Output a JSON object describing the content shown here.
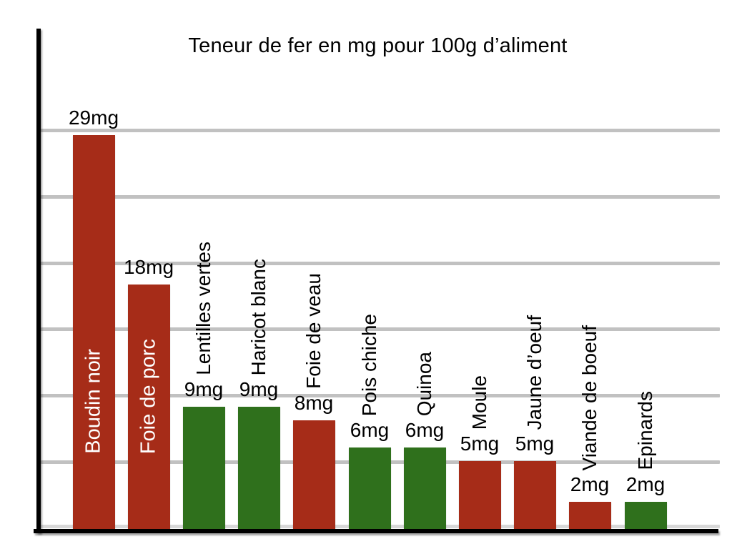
{
  "chart_data": {
    "type": "bar",
    "title": "Teneur de fer en mg pour 100g d’aliment",
    "categories": [
      "Boudin noir",
      "Foie de porc",
      "Lentilles vertes",
      "Haricot blanc",
      "Foie de veau",
      "Pois chiche",
      "Quinoa",
      "Moule",
      "Jaune d’oeuf",
      "Viande de boeuf",
      "Epinards"
    ],
    "values": [
      29,
      18,
      9,
      9,
      8,
      6,
      6,
      5,
      5,
      2,
      2
    ],
    "value_labels": [
      "29mg",
      "18mg",
      "9mg",
      "9mg",
      "8mg",
      "6mg",
      "6mg",
      "5mg",
      "5mg",
      "2mg",
      "2mg"
    ],
    "bar_color_keys": [
      "red",
      "red",
      "green",
      "green",
      "red",
      "green",
      "green",
      "red",
      "red",
      "red",
      "green"
    ],
    "palette": {
      "red": "#A62C18",
      "green": "#2F701C"
    },
    "category_label_placement": [
      "inside",
      "inside",
      "above",
      "above",
      "above",
      "above",
      "above",
      "above",
      "above",
      "above",
      "above"
    ],
    "category_label_colors": {
      "inside": "#FFFFFF",
      "above": "#000000"
    },
    "unit": "mg",
    "xlabel": "",
    "ylabel": "",
    "ylim": [
      0,
      35
    ],
    "gridline_values": [
      0,
      5,
      10,
      15,
      20,
      25,
      30
    ],
    "grid_color": "#C1C1C1",
    "zero_line_color": "#D8D8D8",
    "axis_color": "#000000",
    "background_color": "#FFFFFF",
    "legend": "none",
    "grid": "horizontal"
  }
}
